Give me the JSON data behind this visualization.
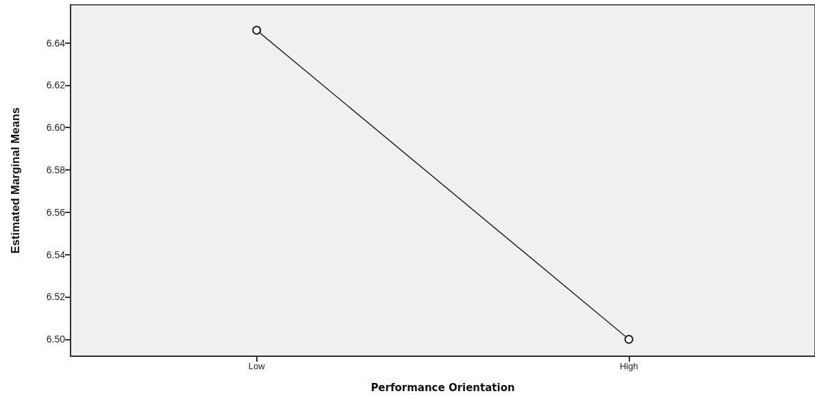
{
  "chart_data": {
    "type": "line",
    "xlabel": "Performance Orientation",
    "ylabel": "Estimated Marginal Means",
    "categories": [
      "Low",
      "High"
    ],
    "series": [
      {
        "color": "#222222",
        "values": [
          6.646,
          6.5
        ]
      }
    ],
    "ylim": [
      6.492,
      6.658
    ],
    "yticks": [
      {
        "value": 6.5,
        "label": "6.50"
      },
      6.52,
      6.54,
      6.56,
      6.58,
      {
        "value": 6.6,
        "label": "6.60"
      },
      6.62,
      6.64
    ],
    "grid": false,
    "marker": "circle",
    "line_style": "solid"
  }
}
